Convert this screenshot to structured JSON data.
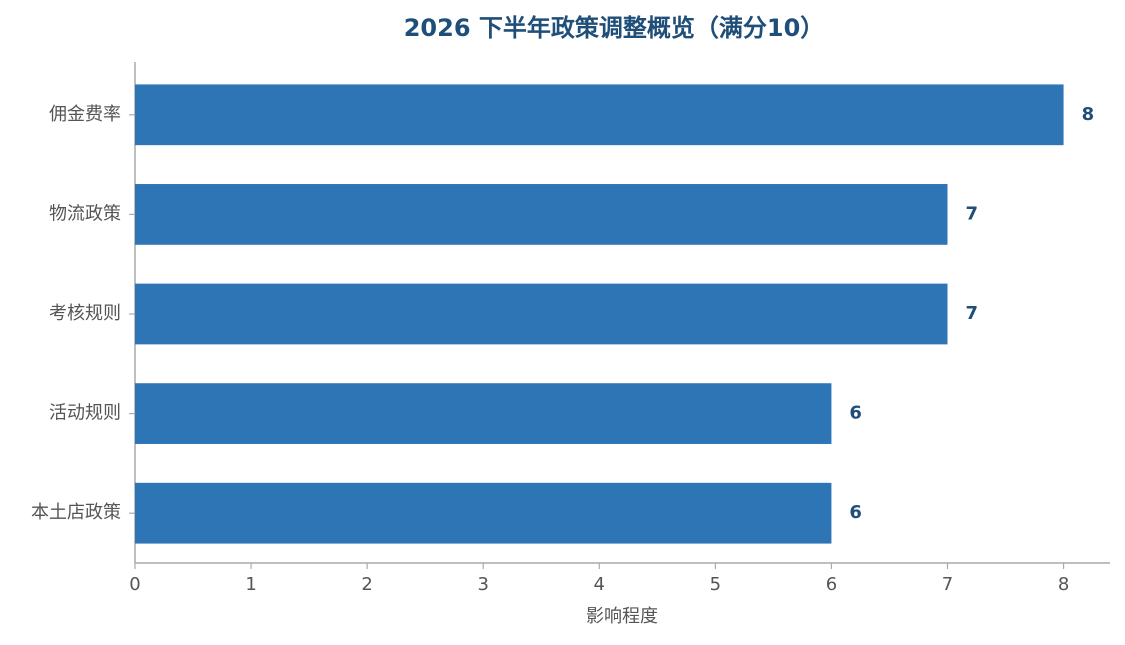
{
  "chart_data": {
    "type": "barh",
    "title": "2026 下半年政策调整概览（满分10）",
    "categories": [
      "佣金费率",
      "物流政策",
      "考核规则",
      "活动规则",
      "本土店政策"
    ],
    "values": [
      8,
      7,
      7,
      6,
      6
    ],
    "color": "#2e75b6",
    "x_label": "影响程度",
    "xlim": [
      0,
      8.4
    ],
    "xticks": [
      0,
      1,
      2,
      3,
      4,
      5,
      6,
      7,
      8
    ],
    "grid": false
  }
}
